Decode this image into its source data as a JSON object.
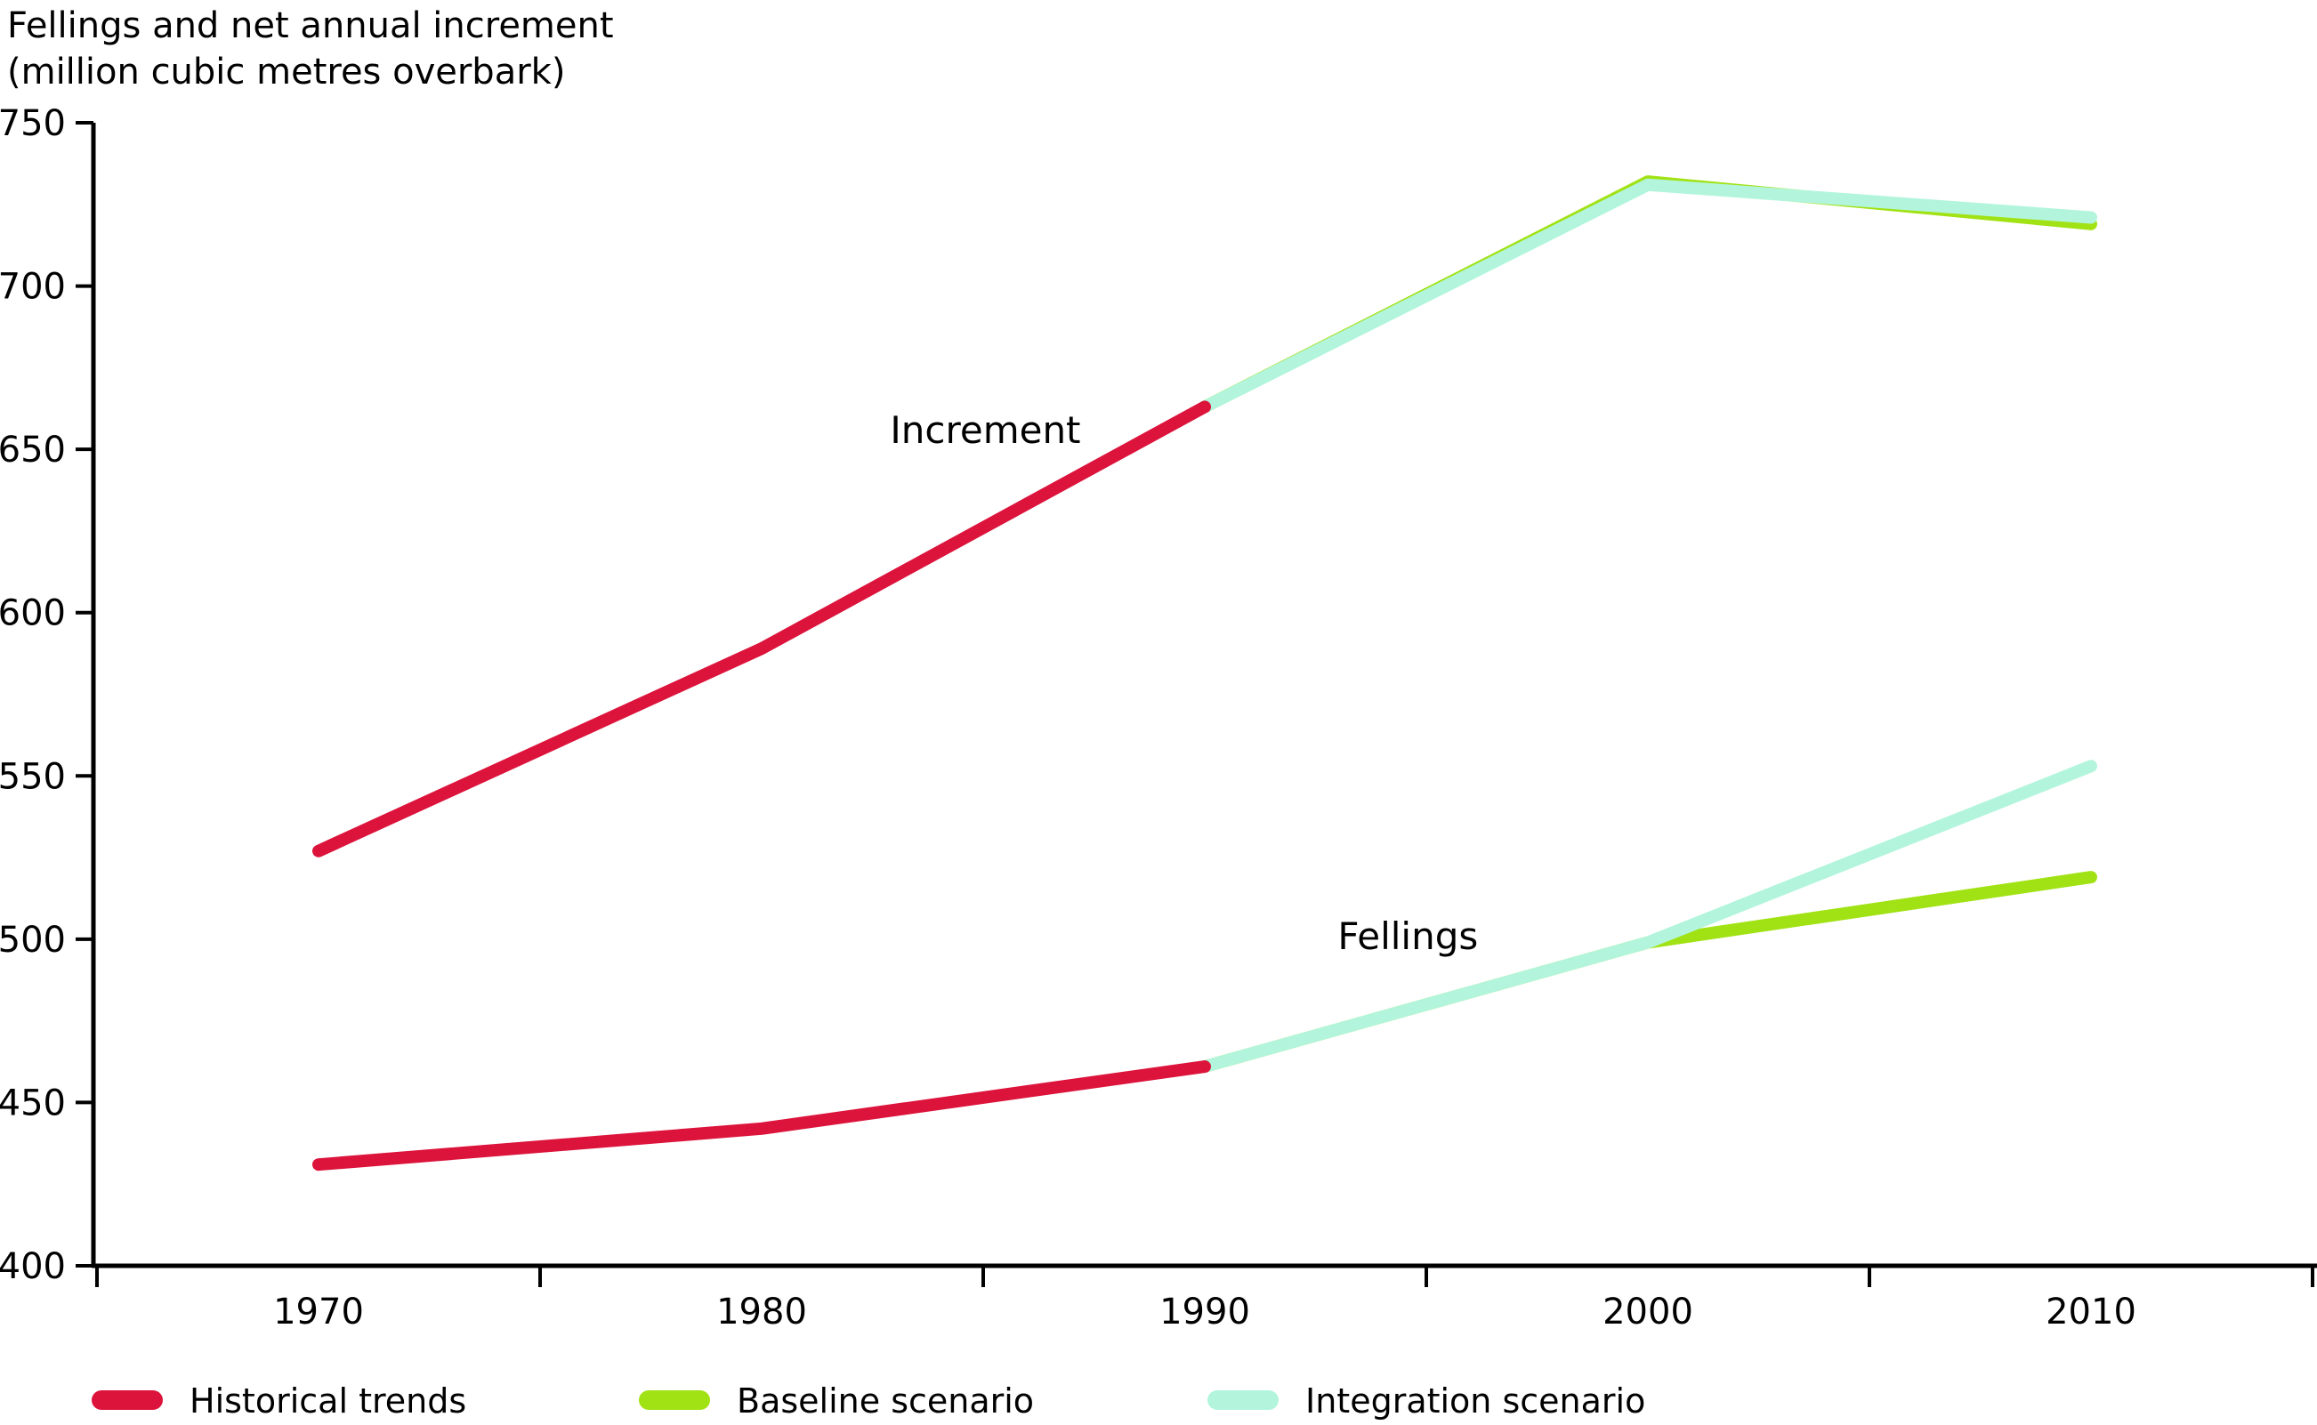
{
  "chart_data": {
    "type": "line",
    "title": "Fellings and net annual increment",
    "subtitle": "(million cubic metres overbark)",
    "xlabel": "",
    "ylabel": "",
    "x_ticks": [
      1970,
      1980,
      1990,
      2000,
      2010
    ],
    "y_ticks": [
      400,
      450,
      500,
      550,
      600,
      650,
      700,
      750
    ],
    "ylim": [
      400,
      750
    ],
    "xlim_years": [
      1965,
      2015
    ],
    "grid": false,
    "legend_position": "bottom",
    "colors": {
      "historical": "#DC143C",
      "baseline": "#A1E214",
      "integration": "#B2F5DC"
    },
    "series": [
      {
        "name": "Increment - baseline scenario",
        "color_key": "baseline",
        "points": [
          [
            1990,
            663
          ],
          [
            2000,
            732
          ],
          [
            2010,
            719
          ]
        ]
      },
      {
        "name": "Fellings - baseline scenario",
        "color_key": "baseline",
        "points": [
          [
            1990,
            461
          ],
          [
            2000,
            499
          ],
          [
            2010,
            519
          ]
        ]
      },
      {
        "name": "Increment - integration scenario",
        "color_key": "integration",
        "points": [
          [
            1990,
            663
          ],
          [
            2000,
            731
          ],
          [
            2010,
            721
          ]
        ]
      },
      {
        "name": "Fellings - integration scenario",
        "color_key": "integration",
        "points": [
          [
            1990,
            461
          ],
          [
            2000,
            499
          ],
          [
            2010,
            553
          ]
        ]
      },
      {
        "name": "Increment - historical trends",
        "color_key": "historical",
        "points": [
          [
            1970,
            527
          ],
          [
            1980,
            589
          ],
          [
            1990,
            663
          ]
        ]
      },
      {
        "name": "Fellings - historical trends",
        "color_key": "historical",
        "points": [
          [
            1970,
            431
          ],
          [
            1980,
            442
          ],
          [
            1990,
            461
          ]
        ]
      }
    ],
    "annotations": [
      {
        "text": "Increment",
        "year": 1982.9,
        "value": 652
      },
      {
        "text": "Fellings",
        "year": 1993.0,
        "value": 497
      }
    ],
    "legend": [
      {
        "label": "Historical trends",
        "color_key": "historical"
      },
      {
        "label": "Baseline scenario",
        "color_key": "baseline"
      },
      {
        "label": "Integration scenario",
        "color_key": "integration"
      }
    ]
  }
}
